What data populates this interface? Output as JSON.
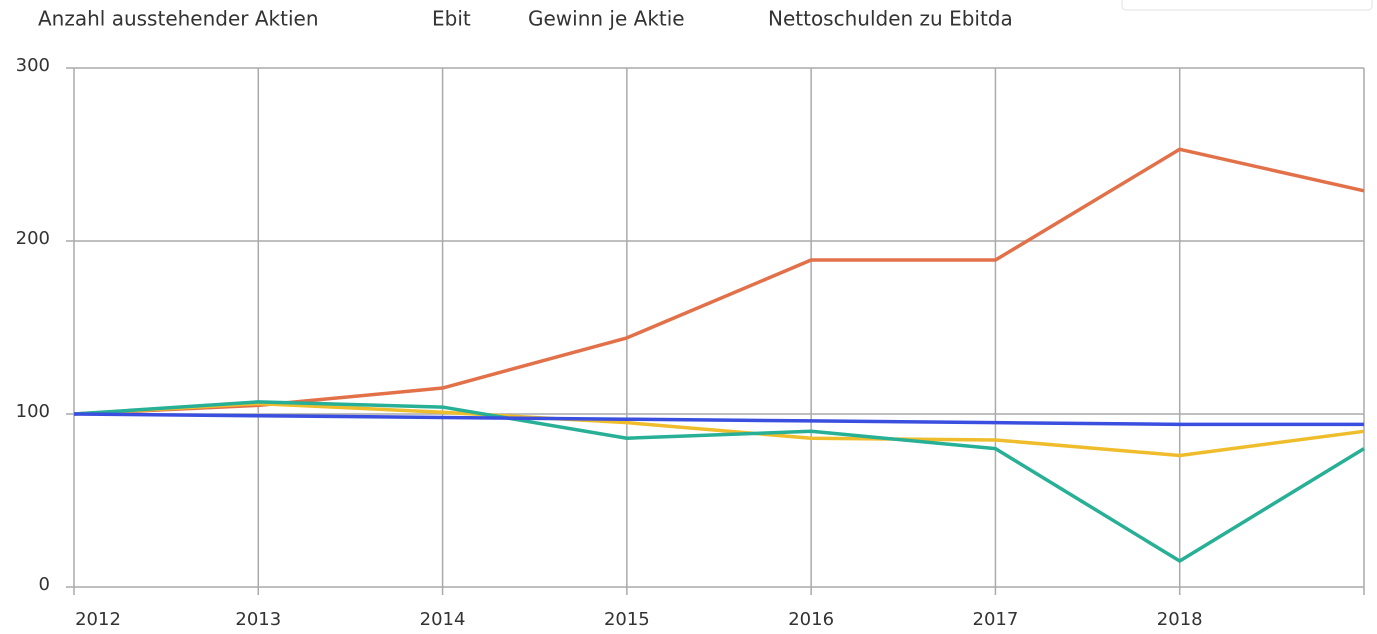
{
  "chart_data": {
    "type": "line",
    "categories": [
      "2012",
      "2013",
      "2014",
      "2015",
      "2016",
      "2017",
      "2018",
      null
    ],
    "series": [
      {
        "name": "Anzahl ausstehender Aktien",
        "color": "#3a4fe0",
        "values": [
          100,
          99,
          98,
          97,
          96,
          95,
          94,
          94
        ]
      },
      {
        "name": "Ebit",
        "color": "#e2714a",
        "values": [
          100,
          105,
          115,
          144,
          189,
          189,
          253,
          229
        ]
      },
      {
        "name": "Gewinn je Aktie",
        "color": "#efbd2c",
        "values": [
          100,
          106,
          101,
          95,
          86,
          85,
          76,
          90
        ]
      },
      {
        "name": "Nettoschulden zu Ebitda",
        "color": "#27b096",
        "values": [
          100,
          107,
          104,
          86,
          90,
          80,
          15,
          80
        ]
      }
    ],
    "ylim": [
      0,
      300
    ],
    "yticks": [
      0,
      100,
      200,
      300
    ],
    "grid": true
  }
}
